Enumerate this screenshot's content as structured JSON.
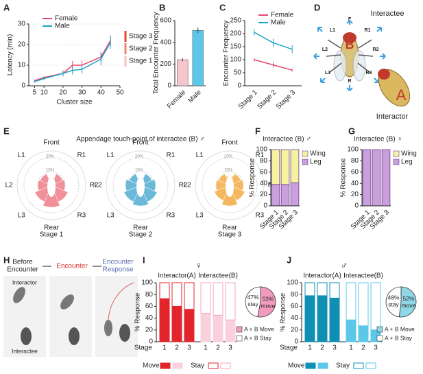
{
  "chart_data": [
    {
      "type": "line",
      "label": "A",
      "xlabel": "Cluster size",
      "ylabel": "Latency (min)",
      "x": [
        5,
        10,
        20,
        25,
        30,
        40,
        45
      ],
      "xlim": [
        2,
        50
      ],
      "xticks": [
        5,
        10,
        20,
        30,
        40,
        50
      ],
      "ylim": [
        0,
        30
      ],
      "yticks": [
        0,
        10,
        20,
        30
      ],
      "grid": true,
      "series": [
        {
          "name": "Female",
          "color": "#e8466e",
          "values": [
            2.5,
            4,
            6,
            10,
            10,
            14,
            22
          ],
          "errors": [
            0.5,
            0.8,
            1.2,
            2,
            2.5,
            2.5,
            2.5
          ]
        },
        {
          "name": "Male",
          "color": "#1aa3c4",
          "values": [
            2,
            3.5,
            6,
            7.5,
            8,
            13,
            21
          ],
          "errors": [
            0.5,
            0.8,
            1.5,
            2,
            2,
            3,
            3
          ]
        }
      ],
      "annotations": [
        "Stage 3",
        "Stage 2",
        "Stage 1"
      ]
    },
    {
      "type": "bar",
      "label": "B",
      "ylabel": "Total Encounter Frequency",
      "categories": [
        "Female",
        "Male"
      ],
      "values": [
        240,
        510
      ],
      "errors": [
        15,
        25
      ],
      "colors": [
        "#f7c5cc",
        "#5bc8ea"
      ],
      "ylim": [
        0,
        600
      ],
      "yticks": [
        0,
        200,
        400,
        600
      ]
    },
    {
      "type": "line",
      "label": "C",
      "ylabel": "Encounter Frequency",
      "categories": [
        "Stage 1",
        "Stage 2",
        "Stage 3"
      ],
      "ylim": [
        0,
        250
      ],
      "yticks": [
        0,
        50,
        100,
        150,
        200,
        250
      ],
      "series": [
        {
          "name": "Female",
          "color": "#e8466e",
          "values": [
            100,
            80,
            60
          ],
          "errors": [
            7,
            10,
            6
          ]
        },
        {
          "name": "Male",
          "color": "#1aa3c4",
          "values": [
            205,
            165,
            140
          ],
          "errors": [
            12,
            15,
            15
          ]
        }
      ]
    },
    {
      "type": "polar",
      "label": "E",
      "group_title": "Appendage touch-point of interactee (B) ♂",
      "title": "Stage 1",
      "color": "#f0909a",
      "categories": [
        "Front",
        "R1",
        "R2",
        "R3",
        "Rear",
        "L3",
        "L2",
        "L1"
      ],
      "values": [
        6,
        9,
        10,
        13,
        16,
        13,
        10,
        9
      ],
      "rlim": [
        0,
        25
      ],
      "rticks": [
        {
          "value": 10,
          "label": "10%"
        },
        {
          "value": 20,
          "label": "20%"
        }
      ]
    },
    {
      "type": "polar",
      "title": "Stage 2",
      "color": "#6bb8d8",
      "categories": [
        "Front",
        "R1",
        "R2",
        "R3",
        "Rear",
        "L3",
        "L2",
        "L1"
      ],
      "values": [
        6,
        9,
        11,
        13,
        15,
        13,
        11,
        9
      ],
      "rlim": [
        0,
        25
      ],
      "rticks": [
        {
          "value": 10,
          "label": "10%"
        },
        {
          "value": 20,
          "label": "20%"
        }
      ]
    },
    {
      "type": "polar",
      "title": "Stage 3",
      "color": "#f5b860",
      "categories": [
        "Front",
        "R1",
        "R2",
        "R3",
        "Rear",
        "L3",
        "L2",
        "L1"
      ],
      "values": [
        7,
        9,
        10,
        12,
        15,
        12,
        10,
        9
      ],
      "rlim": [
        0,
        25
      ],
      "rticks": [
        {
          "value": 10,
          "label": "10%"
        },
        {
          "value": 20,
          "label": "20%"
        }
      ]
    },
    {
      "type": "stacked_bar",
      "label": "F",
      "title": "Interactee (B) ♂",
      "ylabel": "% Response",
      "categories": [
        "Stage 1",
        "Stage 2",
        "Stage 3"
      ],
      "ylim": [
        0,
        100
      ],
      "yticks": [
        0,
        20,
        40,
        60,
        80,
        100
      ],
      "series": [
        {
          "name": "Leg",
          "color": "#c9a0dc",
          "values": [
            38,
            38,
            41
          ]
        },
        {
          "name": "Wing",
          "color": "#f6f3a0",
          "values": [
            62,
            62,
            59
          ]
        }
      ]
    },
    {
      "type": "stacked_bar",
      "label": "G",
      "title": "Interactee (B) ♀",
      "ylabel": "% Response",
      "categories": [
        "Stage 1",
        "Stage 2",
        "Stage 3"
      ],
      "ylim": [
        0,
        100
      ],
      "yticks": [
        0,
        20,
        40,
        60,
        80,
        100
      ],
      "series": [
        {
          "name": "Leg",
          "color": "#c9a0dc",
          "values": [
            100,
            100,
            100
          ]
        },
        {
          "name": "Wing",
          "color": "#f6f3a0",
          "values": [
            0,
            0,
            0
          ]
        }
      ]
    },
    {
      "type": "grouped_stacked_bar",
      "label": "I",
      "title": "♀",
      "ylabel": "% Response",
      "xlabel": "Stage",
      "categories": [
        "1",
        "2",
        "3"
      ],
      "ylim": [
        0,
        100
      ],
      "yticks": [
        0,
        20,
        40,
        60,
        80,
        100
      ],
      "groups": [
        {
          "name": "Interactor(A)",
          "series": [
            {
              "name": "Move",
              "color": "#e3242b",
              "values": [
                73,
                60,
                55
              ]
            },
            {
              "name": "Stay",
              "color": "#e3242b",
              "values": [
                27,
                40,
                45
              ]
            }
          ]
        },
        {
          "name": "Interactee(B)",
          "series": [
            {
              "name": "Move",
              "color": "#f9d0dc",
              "values": [
                48,
                45,
                37
              ]
            },
            {
              "name": "Stay",
              "color": "#f4a6bc",
              "values": [
                52,
                55,
                63
              ]
            }
          ]
        }
      ]
    },
    {
      "type": "pie",
      "categories": [
        "stay",
        "move"
      ],
      "values": [
        47,
        53
      ],
      "value_labels": [
        "47%",
        "53%"
      ],
      "colors": [
        "#ffffff",
        "#f29bbf"
      ],
      "legend": [
        {
          "name": "A + B Move",
          "color": "#f29bbf"
        },
        {
          "name": "A + B Stay",
          "color": "#ffffff"
        }
      ]
    },
    {
      "type": "grouped_stacked_bar",
      "label": "J",
      "title": "♂",
      "ylabel": "% Response",
      "xlabel": "Stage",
      "categories": [
        "1",
        "2",
        "3"
      ],
      "ylim": [
        0,
        100
      ],
      "yticks": [
        0,
        20,
        40,
        60,
        80,
        100
      ],
      "groups": [
        {
          "name": "Interactor(A)",
          "series": [
            {
              "name": "Move",
              "color": "#0f8fb3",
              "values": [
                78,
                78,
                74
              ]
            },
            {
              "name": "Stay",
              "color": "#0f8fb3",
              "values": [
                22,
                22,
                26
              ]
            }
          ]
        },
        {
          "name": "Interactee(B)",
          "series": [
            {
              "name": "Move",
              "color": "#5bc8ea",
              "values": [
                37,
                27,
                20
              ]
            },
            {
              "name": "Stay",
              "color": "#5bc8ea",
              "values": [
                63,
                73,
                80
              ]
            }
          ]
        }
      ]
    },
    {
      "type": "pie",
      "categories": [
        "stay",
        "move"
      ],
      "values": [
        48,
        52
      ],
      "value_labels": [
        "48%",
        "52%"
      ],
      "colors": [
        "#ffffff",
        "#8fd6e6"
      ],
      "legend": [
        {
          "name": "A + B Move",
          "color": "#8fd6e6"
        },
        {
          "name": "A + B Stay",
          "color": "#ffffff"
        }
      ]
    }
  ],
  "diagram_D": {
    "label": "D",
    "title": "Interactee",
    "subtitle": "Interactor",
    "parts": [
      "F",
      "L1",
      "R1",
      "L2",
      "R2",
      "L3",
      "R3",
      "R"
    ],
    "fly_B": "B",
    "fly_A": "A"
  },
  "diagram_H": {
    "label": "H",
    "steps": [
      [
        "Before",
        "Encounter"
      ],
      [
        "Encounter"
      ],
      [
        "Encounter",
        "Response"
      ]
    ],
    "labels": [
      "Interactor",
      "Interactee"
    ]
  }
}
